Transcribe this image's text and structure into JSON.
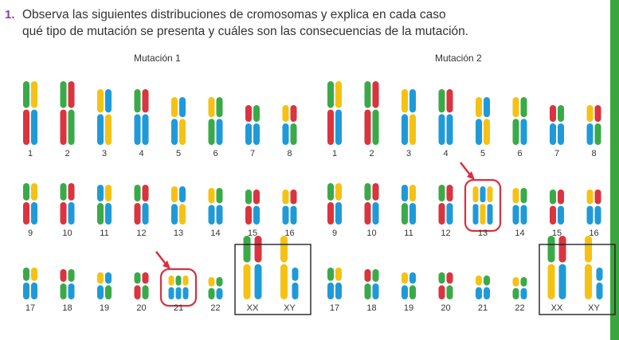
{
  "question": {
    "number": "1.",
    "line1": "Observa las siguientes distribuciones de cromosomas y explica en cada caso",
    "line2": "qué tipo de mutación se presenta y cuáles son las consecuencias de la mutación."
  },
  "colors": {
    "accent": "#8a3fa0",
    "sidebar": "#3ba63b",
    "highlight": "#d9303f",
    "yellow": "#f5c214",
    "green": "#3aaa48",
    "blue": "#1f9ad8",
    "red": "#d9343f"
  },
  "karyotypes": [
    {
      "title": "Mutación 1",
      "rows": [
        [
          "1",
          "2",
          "3",
          "4",
          "5",
          "6",
          "7",
          "8"
        ],
        [
          "9",
          "10",
          "11",
          "12",
          "13",
          "14",
          "15",
          "16"
        ],
        [
          "17",
          "18",
          "19",
          "20",
          "21",
          "22",
          "XX",
          "XY"
        ]
      ],
      "trisomy": "21"
    },
    {
      "title": "Mutación 2",
      "rows": [
        [
          "1",
          "2",
          "3",
          "4",
          "5",
          "6",
          "7",
          "8"
        ],
        [
          "9",
          "10",
          "11",
          "12",
          "13",
          "14",
          "15",
          "16"
        ],
        [
          "17",
          "18",
          "19",
          "20",
          "21",
          "22",
          "XX",
          "XY"
        ]
      ],
      "trisomy": "13"
    }
  ]
}
